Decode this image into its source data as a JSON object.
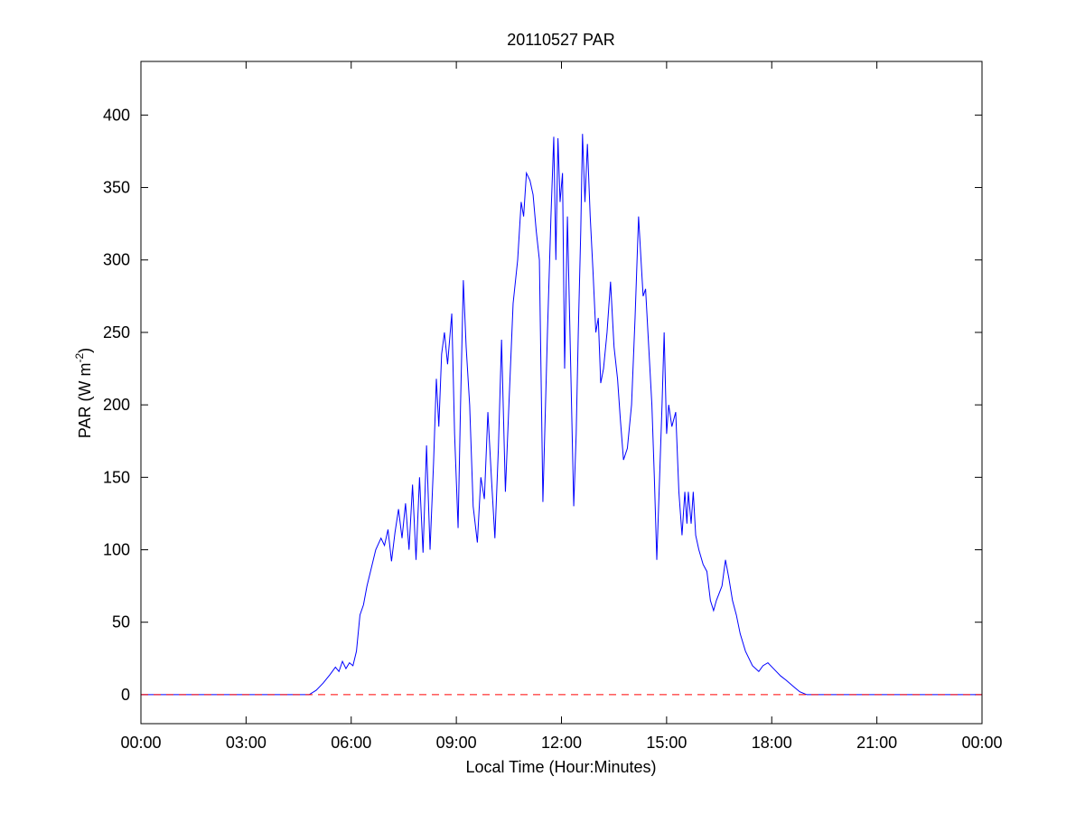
{
  "chart_data": {
    "type": "line",
    "title": "20110527 PAR",
    "xlabel": "Local Time (Hour:Minutes)",
    "ylabel": [
      "PAR (W m",
      "-2",
      ")"
    ],
    "xlim": [
      0,
      24
    ],
    "xticks": [
      {
        "value": 0,
        "label": "00:00"
      },
      {
        "value": 3,
        "label": "03:00"
      },
      {
        "value": 6,
        "label": "06:00"
      },
      {
        "value": 9,
        "label": "09:00"
      },
      {
        "value": 12,
        "label": "12:00"
      },
      {
        "value": 15,
        "label": "15:00"
      },
      {
        "value": 18,
        "label": "18:00"
      },
      {
        "value": 21,
        "label": "21:00"
      },
      {
        "value": 24,
        "label": "00:00"
      }
    ],
    "ylim": [
      -20,
      437
    ],
    "yticks": [
      0,
      50,
      100,
      150,
      200,
      250,
      300,
      350,
      400
    ],
    "reference_line": {
      "value": 0,
      "color": "#ff0000",
      "dashed": true
    },
    "x": [
      0,
      4.8,
      5.0,
      5.2,
      5.4,
      5.55,
      5.65,
      5.75,
      5.85,
      5.95,
      6.05,
      6.15,
      6.25,
      6.35,
      6.45,
      6.55,
      6.7,
      6.85,
      6.95,
      7.05,
      7.15,
      7.25,
      7.35,
      7.45,
      7.55,
      7.65,
      7.75,
      7.85,
      7.95,
      8.05,
      8.15,
      8.25,
      8.35,
      8.43,
      8.5,
      8.58,
      8.66,
      8.75,
      8.87,
      8.95,
      9.05,
      9.12,
      9.2,
      9.28,
      9.38,
      9.48,
      9.6,
      9.7,
      9.8,
      9.9,
      10.0,
      10.1,
      10.2,
      10.29,
      10.4,
      10.5,
      10.62,
      10.75,
      10.85,
      10.92,
      11.0,
      11.1,
      11.19,
      11.28,
      11.37,
      11.47,
      11.6,
      11.7,
      11.78,
      11.84,
      11.9,
      11.96,
      12.03,
      12.09,
      12.17,
      12.26,
      12.35,
      12.42,
      12.48,
      12.55,
      12.6,
      12.67,
      12.74,
      12.82,
      12.9,
      12.98,
      13.05,
      13.12,
      13.2,
      13.3,
      13.4,
      13.5,
      13.6,
      13.68,
      13.77,
      13.88,
      14.0,
      14.1,
      14.2,
      14.27,
      14.33,
      14.4,
      14.49,
      14.58,
      14.65,
      14.72,
      14.8,
      14.87,
      14.93,
      15.0,
      15.06,
      15.15,
      15.26,
      15.35,
      15.44,
      15.52,
      15.58,
      15.62,
      15.7,
      15.76,
      15.83,
      15.92,
      16.04,
      16.15,
      16.25,
      16.34,
      16.42,
      16.5,
      16.58,
      16.68,
      16.78,
      16.88,
      16.99,
      17.1,
      17.25,
      17.45,
      17.63,
      17.75,
      17.89,
      18.05,
      18.25,
      18.41,
      18.6,
      18.8,
      19.0,
      24
    ],
    "series": [
      {
        "color": "#0000ff",
        "values": [
          0,
          0,
          3,
          8,
          14,
          19,
          16,
          23,
          18,
          22,
          20,
          30,
          55,
          62,
          75,
          85,
          100,
          108,
          103,
          114,
          92,
          112,
          128,
          108,
          132,
          100,
          145,
          93,
          150,
          98,
          172,
          100,
          160,
          218,
          185,
          235,
          250,
          228,
          263,
          180,
          115,
          200,
          286,
          240,
          200,
          130,
          105,
          150,
          135,
          195,
          150,
          108,
          170,
          245,
          140,
          200,
          270,
          300,
          340,
          330,
          360,
          355,
          345,
          320,
          300,
          133,
          250,
          330,
          385,
          300,
          384,
          340,
          360,
          225,
          330,
          230,
          130,
          180,
          250,
          320,
          387,
          340,
          380,
          330,
          292,
          250,
          260,
          215,
          225,
          250,
          285,
          240,
          218,
          190,
          162,
          170,
          200,
          260,
          330,
          300,
          275,
          280,
          240,
          200,
          150,
          93,
          150,
          200,
          250,
          180,
          200,
          185,
          195,
          140,
          110,
          140,
          118,
          140,
          118,
          140,
          110,
          100,
          90,
          85,
          65,
          58,
          65,
          70,
          75,
          93,
          80,
          65,
          55,
          42,
          30,
          20,
          16,
          20,
          22,
          18,
          13,
          10,
          6,
          2,
          0,
          0
        ]
      }
    ]
  }
}
